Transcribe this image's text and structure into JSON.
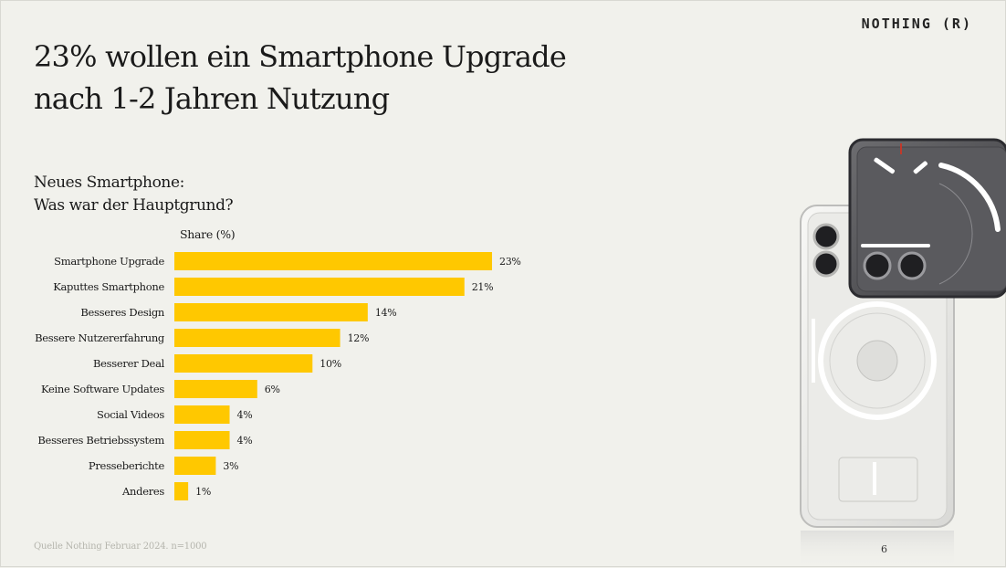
{
  "slide": {
    "title_lines": [
      "23% wollen ein Smartphone Upgrade",
      "nach 1-2 Jahren Nutzung"
    ],
    "brand": "NOTHING (R)",
    "subtitle_lines": [
      "Neues Smartphone:",
      "Was war der Hauptgrund?"
    ],
    "footer": "Quelle Nothing Februar 2024. n=1000",
    "page_number": "6"
  },
  "chart_data": {
    "type": "bar",
    "orientation": "horizontal",
    "axis_title": "Share (%)",
    "categories": [
      "Smartphone Upgrade",
      "Kaputtes Smartphone",
      "Besseres Design",
      "Bessere Nutzererfahrung",
      "Besserer Deal",
      "Keine Software Updates",
      "Social Videos",
      "Besseres Betriebssystem",
      "Presseberichte",
      "Anderes"
    ],
    "values": [
      23,
      21,
      14,
      12,
      10,
      6,
      4,
      4,
      3,
      1
    ],
    "value_labels": [
      "23%",
      "21%",
      "14%",
      "12%",
      "10%",
      "6%",
      "4%",
      "4%",
      "3%",
      "1%"
    ],
    "xlim": [
      0,
      23
    ],
    "bar_color": "#ffc800",
    "grid": false,
    "legend": "none"
  }
}
